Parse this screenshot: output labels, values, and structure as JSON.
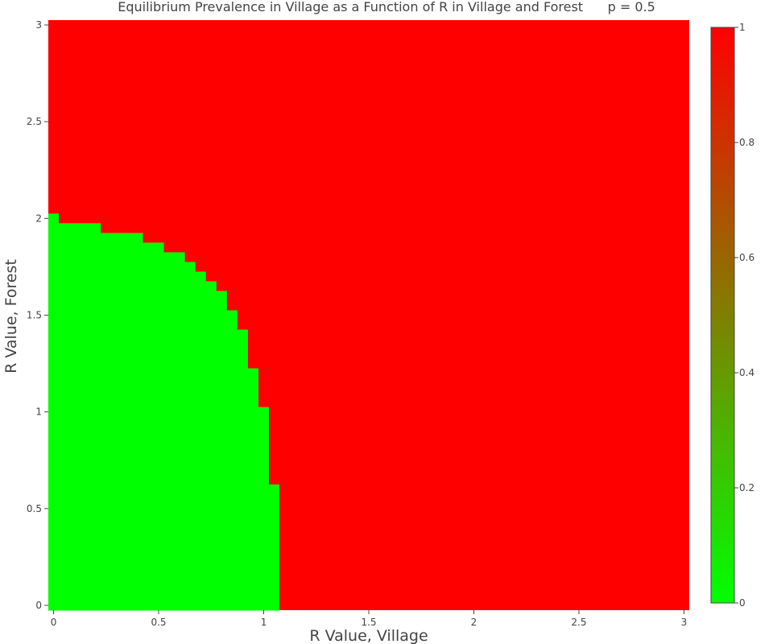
{
  "chart_data": {
    "type": "heatmap",
    "title": "Equilibrium Prevalence in Village as a Function of R in Village and Forest      p = 0.5",
    "xlabel": "R Value, Village",
    "ylabel": "R Value, Forest",
    "xlim": [
      -0.025,
      3.025
    ],
    "ylim": [
      -0.025,
      3.025
    ],
    "xticks": [
      0,
      0.5,
      1,
      1.5,
      2,
      2.5,
      3
    ],
    "xtick_labels": [
      "0",
      "0.5",
      "1",
      "1.5",
      "2",
      "2.5",
      "3"
    ],
    "yticks": [
      0,
      0.5,
      1,
      1.5,
      2,
      2.5,
      3
    ],
    "ytick_labels": [
      "0",
      "0.5",
      "1",
      "1.5",
      "2",
      "2.5",
      "3"
    ],
    "cell_size": 0.05,
    "z_min": 0,
    "z_max": 1,
    "colorscale": [
      [
        0,
        "#00ff00"
      ],
      [
        1,
        "#ff0000"
      ]
    ],
    "low_value_region": {
      "z": 0,
      "description_rows": "for each forest R band, village R upper bound of the z=0 region",
      "rows": [
        {
          "forest_r_max": 0.625,
          "village_r_max": 1.075
        },
        {
          "forest_r_max": 1.025,
          "village_r_max": 1.025
        },
        {
          "forest_r_max": 1.225,
          "village_r_max": 0.975
        },
        {
          "forest_r_max": 1.425,
          "village_r_max": 0.925
        },
        {
          "forest_r_max": 1.525,
          "village_r_max": 0.875
        },
        {
          "forest_r_max": 1.625,
          "village_r_max": 0.825
        },
        {
          "forest_r_max": 1.675,
          "village_r_max": 0.775
        },
        {
          "forest_r_max": 1.725,
          "village_r_max": 0.725
        },
        {
          "forest_r_max": 1.775,
          "village_r_max": 0.675
        },
        {
          "forest_r_max": 1.825,
          "village_r_max": 0.625
        },
        {
          "forest_r_max": 1.875,
          "village_r_max": 0.525
        },
        {
          "forest_r_max": 1.925,
          "village_r_max": 0.425
        },
        {
          "forest_r_max": 1.975,
          "village_r_max": 0.225
        },
        {
          "forest_r_max": 2.025,
          "village_r_max": 0.025
        }
      ]
    },
    "high_value_region": {
      "z": 1
    },
    "colorbar": {
      "ticks": [
        0,
        0.2,
        0.4,
        0.6,
        0.8,
        1
      ],
      "tick_labels": [
        "0",
        "0.2",
        "0.4",
        "0.6",
        "0.8",
        "1"
      ]
    }
  }
}
